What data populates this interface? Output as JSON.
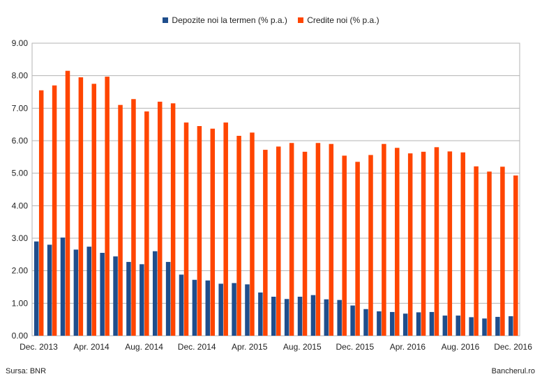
{
  "chart_data": {
    "type": "bar",
    "legend_position": "top",
    "grid": true,
    "ylim": [
      0,
      9
    ],
    "yticks": [
      "0.00",
      "1.00",
      "2.00",
      "3.00",
      "4.00",
      "5.00",
      "6.00",
      "7.00",
      "8.00",
      "9.00"
    ],
    "categories": [
      "Dec. 2013",
      "Jan. 2014",
      "Feb. 2014",
      "Mar. 2014",
      "Apr. 2014",
      "May 2014",
      "Jun. 2014",
      "Jul. 2014",
      "Aug. 2014",
      "Sep. 2014",
      "Oct. 2014",
      "Nov. 2014",
      "Dec. 2014",
      "Jan. 2015",
      "Feb. 2015",
      "Mar. 2015",
      "Apr. 2015",
      "May 2015",
      "Jun. 2015",
      "Jul. 2015",
      "Aug. 2015",
      "Sep. 2015",
      "Oct. 2015",
      "Nov. 2015",
      "Dec. 2015",
      "Jan. 2016",
      "Feb. 2016",
      "Mar. 2016",
      "Apr. 2016",
      "May 2016",
      "Jun. 2016",
      "Jul. 2016",
      "Aug. 2016",
      "Sep. 2016",
      "Oct. 2016",
      "Nov. 2016",
      "Dec. 2016"
    ],
    "xtick_labels": [
      {
        "index": 0,
        "label": "Dec. 2013"
      },
      {
        "index": 4,
        "label": "Apr. 2014"
      },
      {
        "index": 8,
        "label": "Aug. 2014"
      },
      {
        "index": 12,
        "label": "Dec. 2014"
      },
      {
        "index": 16,
        "label": "Apr. 2015"
      },
      {
        "index": 20,
        "label": "Aug. 2015"
      },
      {
        "index": 24,
        "label": "Dec. 2015"
      },
      {
        "index": 28,
        "label": "Apr. 2016"
      },
      {
        "index": 32,
        "label": "Aug. 2016"
      },
      {
        "index": 36,
        "label": "Dec. 2016"
      }
    ],
    "series": [
      {
        "name": "Depozite noi la termen (% p.a.)",
        "color": "#1f4e8c",
        "values": [
          2.9,
          2.8,
          3.02,
          2.65,
          2.74,
          2.55,
          2.44,
          2.27,
          2.2,
          2.6,
          2.27,
          1.88,
          1.72,
          1.7,
          1.6,
          1.62,
          1.58,
          1.33,
          1.2,
          1.13,
          1.2,
          1.25,
          1.12,
          1.1,
          0.93,
          0.82,
          0.75,
          0.73,
          0.68,
          0.72,
          0.73,
          0.62,
          0.62,
          0.57,
          0.53,
          0.58,
          0.6
        ]
      },
      {
        "name": "Credite noi (% p.a.)",
        "color": "#ff4500",
        "values": [
          7.55,
          7.7,
          8.15,
          7.95,
          7.75,
          7.97,
          7.1,
          7.28,
          6.9,
          7.2,
          7.15,
          6.56,
          6.45,
          6.37,
          6.56,
          6.15,
          6.25,
          5.72,
          5.82,
          5.93,
          5.66,
          5.93,
          5.9,
          5.54,
          5.35,
          5.56,
          5.9,
          5.78,
          5.61,
          5.66,
          5.8,
          5.67,
          5.64,
          5.21,
          5.05,
          5.2,
          4.93
        ]
      }
    ]
  },
  "footer": {
    "source": "Sursa: BNR",
    "brand": "Bancherul.ro"
  }
}
